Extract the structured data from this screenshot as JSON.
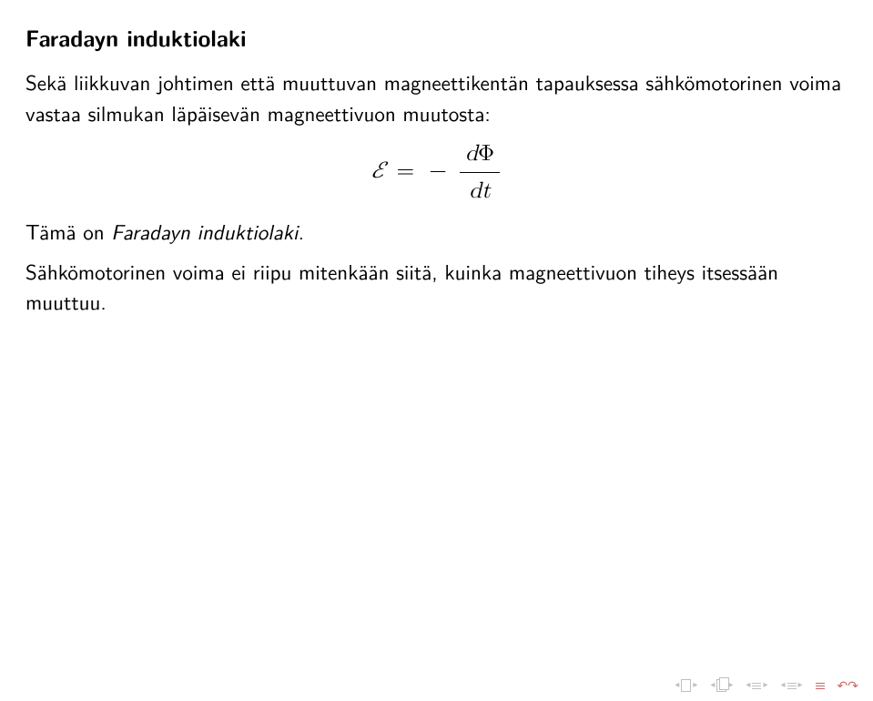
{
  "title": "Faradayn induktiolaki",
  "para1": "Sekä liikkuvan johtimen että muuttuvan magneettikentän tapauksessa sähkömotorinen voima vastaa silmukan läpäisevän magneettivuon muutosta:",
  "equation": {
    "lhs": "ℰ",
    "eq": "=",
    "minus": "−",
    "num_d": "d",
    "num_phi": "Φ",
    "den": "dt"
  },
  "para2_prefix": "Tämä on ",
  "para2_italic": "Faradayn induktiolaki",
  "para2_suffix": ".",
  "para3": "Sähkömotorinen voima ei riipu mitenkään siitä, kuinka magneettivuon tiheys itsessään muuttuu.",
  "colors": {
    "text": "#000000",
    "background": "#ffffff",
    "nav_gray": "#bfbfbf",
    "nav_red": "#cc6666"
  }
}
